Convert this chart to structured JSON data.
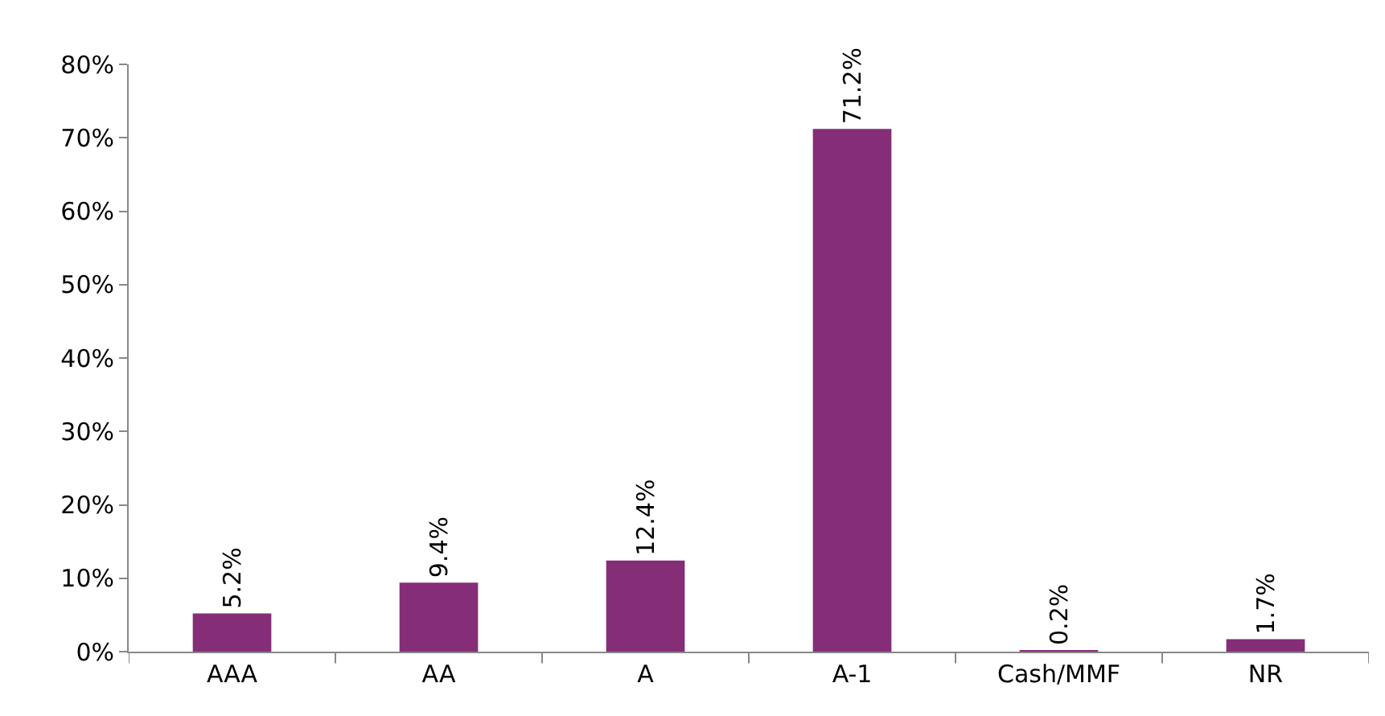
{
  "chart_data": {
    "type": "bar",
    "categories": [
      "AAA",
      "AA",
      "A",
      "A-1",
      "Cash/MMF",
      "NR"
    ],
    "values": [
      5.2,
      9.4,
      12.4,
      71.2,
      0.2,
      1.7
    ],
    "value_labels": [
      "5.2%",
      "9.4%",
      "12.4%",
      "71.2%",
      "0.2%",
      "1.7%"
    ],
    "color": "#862d78",
    "ylim": [
      0,
      80
    ],
    "yticks": [
      {
        "value": 0,
        "label": "0%"
      },
      {
        "value": 10,
        "label": "10%"
      },
      {
        "value": 20,
        "label": "20%"
      },
      {
        "value": 30,
        "label": "30%"
      },
      {
        "value": 40,
        "label": "40%"
      },
      {
        "value": 50,
        "label": "50%"
      },
      {
        "value": 60,
        "label": "60%"
      },
      {
        "value": 70,
        "label": "70%"
      },
      {
        "value": 80,
        "label": "80%"
      }
    ],
    "legend": false
  }
}
